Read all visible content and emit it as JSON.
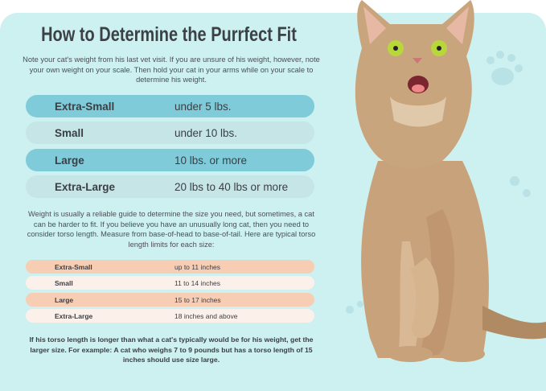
{
  "title": "How to Determine the Purrfect Fit",
  "intro": "Note your cat's weight from his last vet visit. If you are unsure of his weight, however, note your own weight on your scale. Then hold your cat in your arms while on your scale to determine his weight.",
  "weight_table": [
    {
      "size": "Extra-Small",
      "weight": "under 5 lbs."
    },
    {
      "size": "Small",
      "weight": "under 10 lbs."
    },
    {
      "size": "Large",
      "weight": "10 lbs. or more"
    },
    {
      "size": "Extra-Large",
      "weight": "20 lbs to 40 lbs or more"
    }
  ],
  "torso_intro": "Weight is usually a reliable guide to determine the size you need, but sometimes, a cat can be harder to fit. If you believe you have an unusually long cat, then you need to consider torso length. Measure from base-of-head to base-of-tail. Here are typical torso length limits for each size:",
  "torso_table": [
    {
      "size": "Extra-Small",
      "length": "up to 11 inches"
    },
    {
      "size": "Small",
      "length": "11 to 14 inches"
    },
    {
      "size": "Large",
      "length": "15 to 17 inches"
    },
    {
      "size": "Extra-Large",
      "length": "18 inches and above"
    }
  ],
  "footer": "If his torso length is longer than what a cat's typically would be for his weight, get the larger size. For example: A cat who weighs 7 to 9 pounds but has a torso length of 15 inches should use size large.",
  "colors": {
    "background": "#cdf0f1",
    "weight_dark": "#7fcbd9",
    "weight_light": "#c5e5e7",
    "torso_peach": "#f7cdb4",
    "torso_cream": "#fcf1ea"
  }
}
